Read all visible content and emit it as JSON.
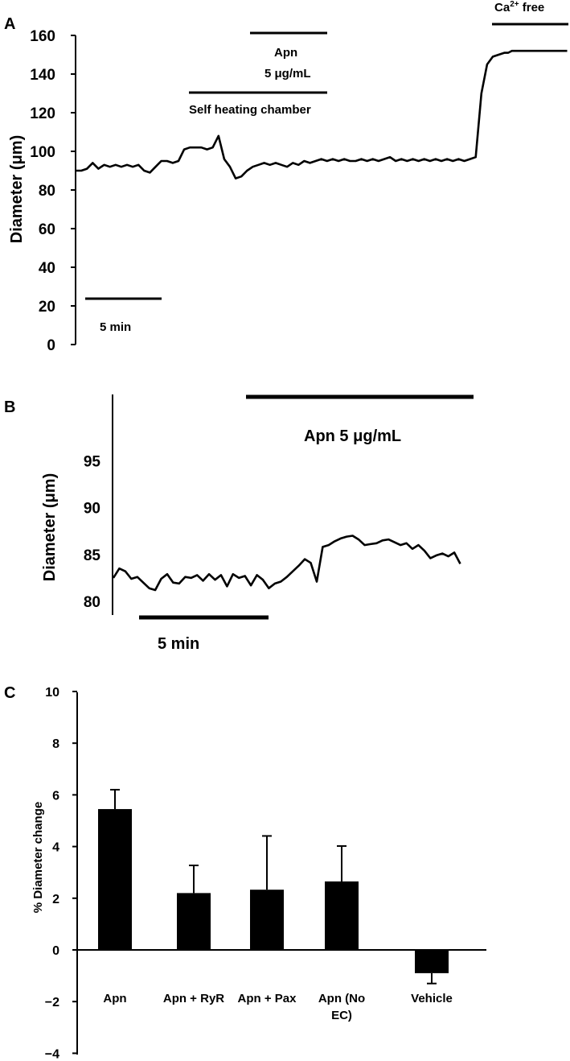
{
  "chart_data": [
    {
      "panel": "A",
      "type": "line",
      "ylabel": "Diameter (μm)",
      "ylim": [
        0,
        160
      ],
      "yticks": [
        0,
        20,
        40,
        60,
        80,
        100,
        120,
        140,
        160
      ],
      "series": [
        {
          "t_min": [
            0,
            0.6,
            1.2,
            1.8,
            2.4,
            3.0,
            3.6,
            4.2,
            4.8,
            5.4,
            6.0,
            6.6,
            7.2,
            7.8,
            8.4,
            9.0,
            9.6,
            10.2,
            10.8,
            11.4,
            12.0,
            12.6,
            13.2,
            13.8,
            14.4,
            15.0,
            15.6,
            16.2,
            16.8,
            17.4,
            18.0,
            18.6,
            19.2,
            19.8,
            20.4,
            21.0,
            21.6,
            22.2,
            22.8,
            23.4,
            24.0,
            24.6,
            25.2,
            25.8,
            26.4,
            27.0,
            27.6,
            28.2,
            28.8,
            29.4,
            30.0,
            30.6,
            31.2,
            31.8,
            32.4,
            33.0,
            33.6,
            34.2,
            34.8,
            35.4,
            36.0,
            36.6,
            37.2,
            37.8,
            38.4,
            39.0,
            39.6,
            40.2,
            40.8,
            41.4,
            42.0,
            42.6,
            43.2,
            43.8,
            44.4,
            45.0,
            45.4,
            45.8,
            46.2,
            46.6,
            47.0,
            47.6,
            48.2,
            48.8,
            49.4,
            50.0,
            50.6,
            51.2,
            51.6
          ],
          "diameter_um": [
            90,
            90,
            91,
            94,
            91,
            93,
            92,
            93,
            92,
            93,
            92,
            93,
            90,
            89,
            92,
            95,
            95,
            94,
            95,
            101,
            102,
            102,
            102,
            101,
            102,
            108,
            96,
            92,
            86,
            87,
            90,
            92,
            93,
            94,
            93,
            94,
            93,
            92,
            94,
            93,
            95,
            94,
            95,
            96,
            95,
            96,
            95,
            96,
            95,
            95,
            96,
            95,
            96,
            95,
            96,
            97,
            95,
            96,
            95,
            96,
            95,
            96,
            95,
            96,
            95,
            96,
            95,
            96,
            95,
            96,
            97,
            130,
            145,
            149,
            150,
            151,
            151,
            152,
            152,
            152,
            152,
            152,
            152,
            152,
            152,
            152,
            152,
            152,
            152
          ]
        }
      ],
      "annotations": {
        "apn": [
          "Apn",
          "5 μg/mL"
        ],
        "chamber": "Self heating chamber",
        "ca_free": "Ca",
        "ca_free_sup": "2+",
        "ca_free_suffix": " free",
        "scale": "5 min"
      }
    },
    {
      "panel": "B",
      "type": "line",
      "ylabel": "Diameter (μm)",
      "ylim": [
        77,
        95
      ],
      "yticks": [
        80,
        85,
        90,
        95
      ],
      "series": [
        {
          "t_min": [
            0,
            0.3,
            0.6,
            0.9,
            1.2,
            1.5,
            1.8,
            2.1,
            2.4,
            2.7,
            3.0,
            3.3,
            3.6,
            3.9,
            4.2,
            4.5,
            4.8,
            5.1,
            5.4,
            5.7,
            6.0,
            6.3,
            6.6,
            6.9,
            7.2,
            7.5,
            7.8,
            8.1,
            8.4,
            8.7,
            9.0,
            9.3,
            9.6,
            9.9,
            10.2,
            10.5,
            10.8,
            11.1,
            11.4,
            11.7,
            12.0,
            12.3,
            12.6,
            12.9,
            13.2,
            13.5,
            13.8,
            14.1,
            14.4,
            14.7,
            15.0,
            15.3,
            15.6,
            15.9,
            16.2,
            16.5,
            16.8,
            17.1,
            17.4
          ],
          "diameter_um": [
            82.5,
            83.5,
            83.2,
            82.4,
            82.6,
            82.0,
            81.4,
            81.2,
            82.4,
            82.9,
            82.0,
            81.9,
            82.6,
            82.5,
            82.8,
            82.2,
            82.9,
            82.3,
            82.8,
            81.6,
            82.9,
            82.5,
            82.7,
            81.7,
            82.8,
            82.3,
            81.4,
            81.9,
            82.1,
            82.6,
            83.2,
            83.8,
            84.5,
            84.1,
            82.1,
            85.8,
            86.0,
            86.4,
            86.7,
            86.9,
            87.0,
            86.6,
            86.0,
            86.1,
            86.2,
            86.5,
            86.6,
            86.3,
            86.0,
            86.2,
            85.6,
            86.0,
            85.4,
            84.6,
            84.9,
            85.1,
            84.8,
            85.2,
            84.0
          ]
        }
      ],
      "annotations": {
        "apn": "Apn 5 μg/mL",
        "scale": "5 min"
      }
    },
    {
      "panel": "C",
      "type": "bar",
      "ylabel": "% Diameter change",
      "ylim": [
        -4,
        10
      ],
      "yticks": [
        -4,
        -2,
        0,
        2,
        4,
        6,
        8,
        10
      ],
      "categories": [
        [
          "Apn"
        ],
        [
          "Apn + RyR"
        ],
        [
          "Apn + Pax"
        ],
        [
          "Apn (No",
          "EC)"
        ],
        [
          "Vehicle"
        ]
      ],
      "values": [
        5.45,
        2.2,
        2.33,
        2.65,
        -0.9
      ],
      "errors": [
        0.75,
        1.07,
        2.08,
        1.37,
        0.4
      ],
      "bar_color": "#000000"
    }
  ],
  "panel_labels": [
    "A",
    "B",
    "C"
  ]
}
